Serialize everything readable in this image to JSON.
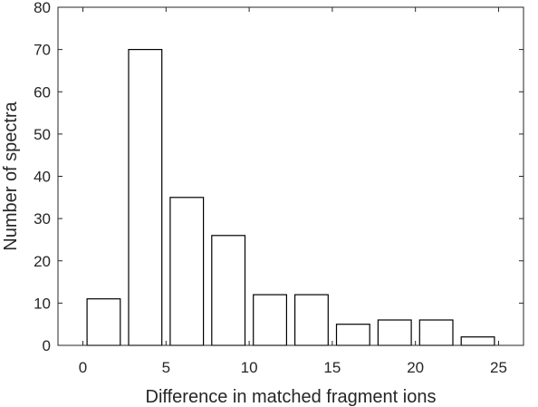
{
  "chart_data": {
    "type": "bar",
    "xlabel": "Difference in matched fragment ions",
    "ylabel": "Number of spectra",
    "x": [
      1.25,
      3.75,
      6.25,
      8.75,
      11.25,
      13.75,
      16.25,
      18.75,
      21.25,
      23.75
    ],
    "values": [
      11,
      70,
      35,
      26,
      12,
      12,
      5,
      6,
      6,
      2
    ],
    "bar_width": 2.0,
    "xlim": [
      -1.5,
      26.5
    ],
    "ylim": [
      0,
      80
    ],
    "xticks": [
      0,
      5,
      10,
      15,
      20,
      25
    ],
    "xtick_labels": [
      "0",
      "5",
      "10",
      "15",
      "20",
      "25"
    ],
    "yticks": [
      0,
      10,
      20,
      30,
      40,
      50,
      60,
      70,
      80
    ],
    "ytick_labels": [
      "0",
      "10",
      "20",
      "30",
      "40",
      "50",
      "60",
      "70",
      "80"
    ],
    "bar_fill": "#ffffff",
    "bar_edge": "#000000",
    "axis_color": "#262626",
    "grid": false,
    "box": true
  }
}
